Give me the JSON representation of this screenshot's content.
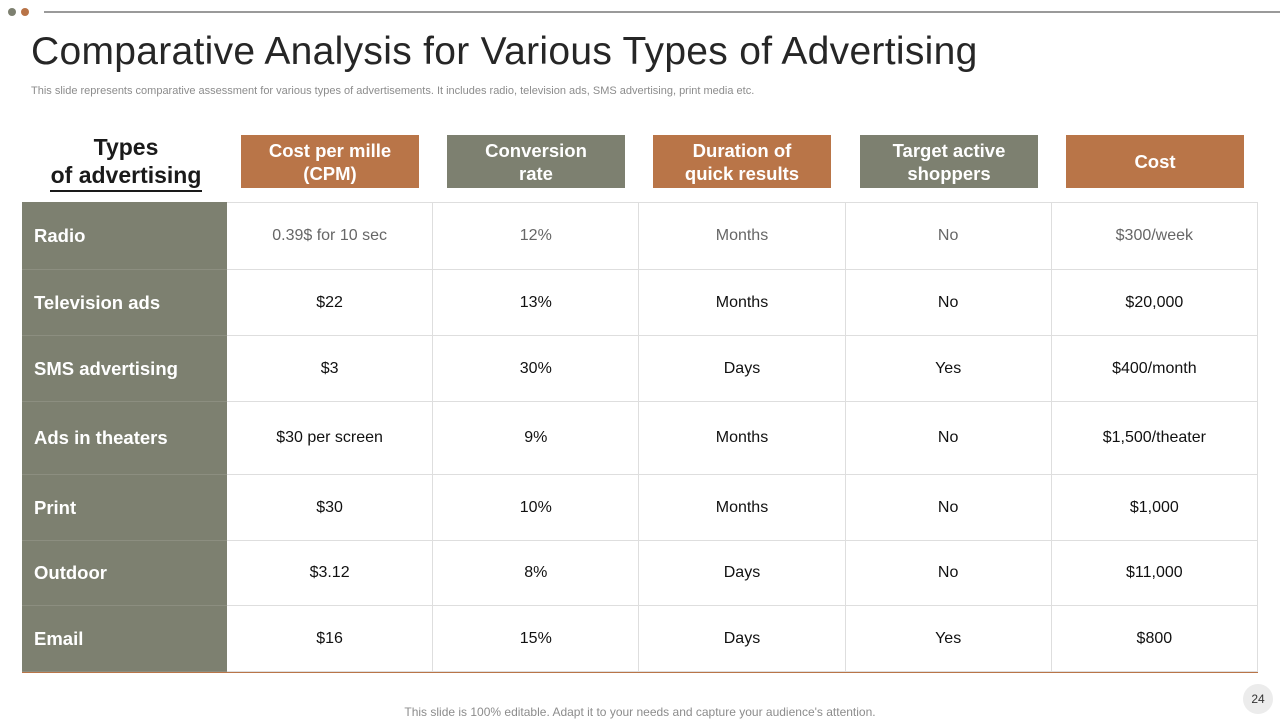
{
  "slide": {
    "title": "Comparative Analysis for Various Types of Advertising",
    "subtitle": "This slide represents comparative assessment for various types of advertisements. It includes radio, television ads, SMS advertising, print media etc.",
    "footer": "This slide is 100% editable. Adapt it to your needs and capture your audience's attention.",
    "page_number": "24",
    "colors": {
      "accent_brown": "#b97548",
      "accent_olive": "#7d8070"
    }
  },
  "table": {
    "row_header_title": {
      "line1": "Types",
      "line2": "of advertising"
    },
    "columns": [
      {
        "line1": "Cost per mille",
        "line2": "(CPM)"
      },
      {
        "line1": "Conversion",
        "line2": "rate"
      },
      {
        "line1": "Duration of",
        "line2": "quick results"
      },
      {
        "line1": "Target active",
        "line2": "shoppers"
      },
      {
        "line1": "Cost",
        "line2": ""
      }
    ],
    "rows": [
      {
        "label": "Radio",
        "cells": [
          "0.39$ for 10 sec",
          "12%",
          "Months",
          "No",
          "$300/week"
        ]
      },
      {
        "label": "Television ads",
        "cells": [
          "$22",
          "13%",
          "Months",
          "No",
          "$20,000"
        ]
      },
      {
        "label": "SMS advertising",
        "cells": [
          "$3",
          "30%",
          "Days",
          "Yes",
          "$400/month"
        ]
      },
      {
        "label": "Ads in theaters",
        "cells": [
          "$30 per screen",
          "9%",
          "Months",
          "No",
          "$1,500/theater"
        ]
      },
      {
        "label": "Print",
        "cells": [
          "$30",
          "10%",
          "Months",
          "No",
          "$1,000"
        ]
      },
      {
        "label": "Outdoor",
        "cells": [
          "$3.12",
          "8%",
          "Days",
          "No",
          "$11,000"
        ]
      },
      {
        "label": "Email",
        "cells": [
          "$16",
          "15%",
          "Days",
          "Yes",
          "$800"
        ]
      }
    ]
  }
}
